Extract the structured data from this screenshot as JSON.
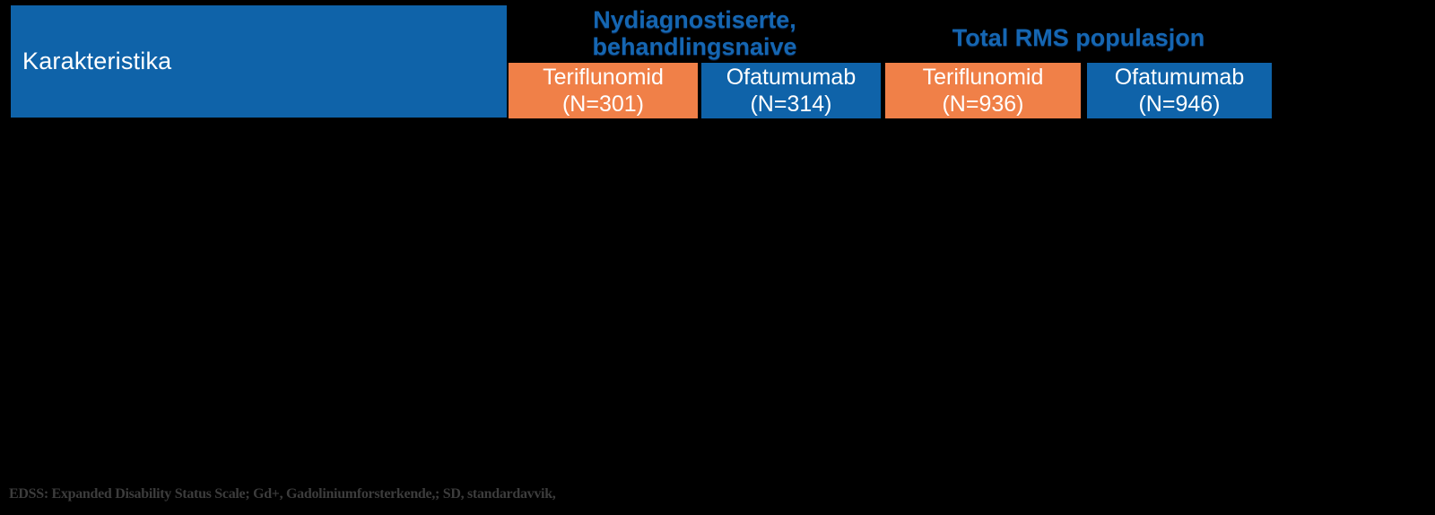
{
  "table": {
    "corner_header": "Karakteristika",
    "group_headers": [
      {
        "name": "newly-diagnosed-treatment-naive",
        "lines": [
          "Nydiagnostiserte,",
          "behandlingsnaive"
        ]
      },
      {
        "name": "total-rms-population",
        "lines": [
          "Total RMS populasjon"
        ]
      }
    ],
    "columns": [
      {
        "drug": "Teriflunomid",
        "n_label": "(N=301)",
        "fill": "#F08048"
      },
      {
        "drug": "Ofatumumab",
        "n_label": "(N=314)",
        "fill": "#0F63A9"
      },
      {
        "drug": "Teriflunomid",
        "n_label": "(N=936)",
        "fill": "#F08048"
      },
      {
        "drug": "Ofatumumab",
        "n_label": "(N=946)",
        "fill": "#0F63A9"
      }
    ]
  },
  "footnote": {
    "text": "EDSS: Expanded Disability Status Scale;  Gd+, Gadoliniumforsterkende,; SD, standardavvik,"
  },
  "colors": {
    "background": "#000000",
    "header_blue": "#0F63A9",
    "header_orange": "#F08048",
    "group_text_blue": "#1566B2",
    "cell_text_white": "#FFFFFF",
    "footnote_gray": "#3C3C3C"
  }
}
